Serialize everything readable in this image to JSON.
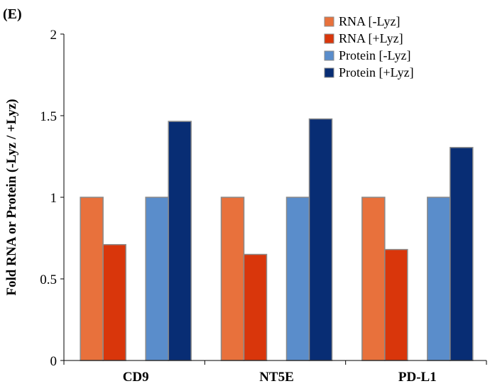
{
  "panel_label": "(E)",
  "chart_data": {
    "type": "bar",
    "title": "",
    "xlabel": "",
    "ylabel": "Fold RNA or Protein (-Lyz / +Lyz)",
    "ylim": [
      0,
      2
    ],
    "yticks": [
      "0",
      "0.5",
      "1",
      "1.5",
      "2"
    ],
    "ytick_values": [
      0,
      0.5,
      1,
      1.5,
      2
    ],
    "grid": false,
    "legend_position": "top-right",
    "categories": [
      "CD9",
      "NT5E",
      "PD-L1"
    ],
    "series": [
      {
        "name": "RNA [-Lyz]",
        "color": "#E8713C",
        "values": [
          1.0,
          1.0,
          1.0
        ]
      },
      {
        "name": "RNA [+Lyz]",
        "color": "#D9360B",
        "values": [
          0.71,
          0.65,
          0.68
        ]
      },
      {
        "name": "Protein  [-Lyz]",
        "color": "#5A8DCB",
        "values": [
          1.0,
          1.0,
          1.0
        ]
      },
      {
        "name": "Protein  [+Lyz]",
        "color": "#082D74",
        "values": [
          1.465,
          1.48,
          1.305
        ]
      }
    ]
  }
}
